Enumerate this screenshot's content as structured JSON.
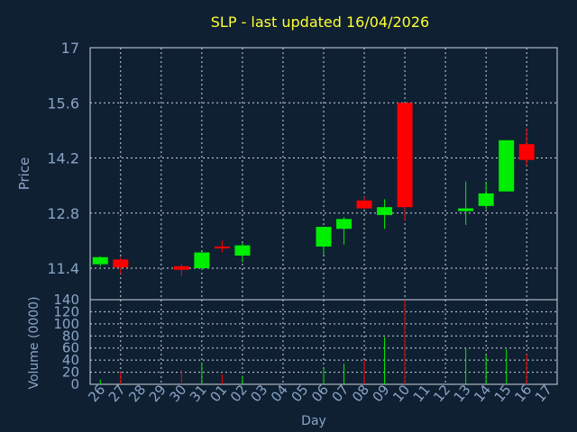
{
  "chart_data": [
    {
      "type": "candlestick",
      "title": "SLP - last updated 16/04/2026",
      "ylabel": "Price",
      "ylim": [
        10.6,
        17
      ],
      "yticks": [
        "17",
        "15.6",
        "14.2",
        "12.8",
        "11.4"
      ],
      "grid": true,
      "up_color": "#00ee00",
      "down_color": "#ff0000",
      "candles": [
        {
          "day": "26",
          "open": 11.5,
          "high": 11.7,
          "low": 11.45,
          "close": 11.68
        },
        {
          "day": "27",
          "open": 11.62,
          "high": 11.68,
          "low": 11.25,
          "close": 11.42
        },
        {
          "day": "30",
          "open": 11.45,
          "high": 11.5,
          "low": 11.2,
          "close": 11.36
        },
        {
          "day": "31",
          "open": 11.4,
          "high": 11.8,
          "low": 11.35,
          "close": 11.8
        },
        {
          "day": "01",
          "open": 11.95,
          "high": 12.1,
          "low": 11.8,
          "close": 11.92
        },
        {
          "day": "02",
          "open": 11.72,
          "high": 12.05,
          "low": 11.55,
          "close": 11.98
        },
        {
          "day": "06",
          "open": 11.95,
          "high": 12.45,
          "low": 11.75,
          "close": 12.45
        },
        {
          "day": "07",
          "open": 12.4,
          "high": 12.7,
          "low": 12.0,
          "close": 12.65
        },
        {
          "day": "08",
          "open": 13.12,
          "high": 13.22,
          "low": 12.9,
          "close": 12.92
        },
        {
          "day": "09",
          "open": 12.75,
          "high": 13.15,
          "low": 12.4,
          "close": 12.95
        },
        {
          "day": "10",
          "open": 15.6,
          "high": 15.6,
          "low": 12.6,
          "close": 12.95
        },
        {
          "day": "13",
          "open": 12.85,
          "high": 13.6,
          "low": 12.5,
          "close": 12.92
        },
        {
          "day": "14",
          "open": 12.98,
          "high": 13.6,
          "low": 12.9,
          "close": 13.3
        },
        {
          "day": "15",
          "open": 13.35,
          "high": 14.65,
          "low": 13.35,
          "close": 14.65
        },
        {
          "day": "16",
          "open": 14.55,
          "high": 14.95,
          "low": 14.0,
          "close": 14.15
        }
      ]
    },
    {
      "type": "bar",
      "ylabel": "Volume (0000)",
      "xlabel": "Day",
      "ylim": [
        0,
        140
      ],
      "yticks": [
        "140",
        "120",
        "100",
        "80",
        "60",
        "40",
        "20",
        "0"
      ],
      "categories": [
        "26",
        "27",
        "28",
        "29",
        "30",
        "31",
        "01",
        "02",
        "03",
        "04",
        "05",
        "06",
        "07",
        "08",
        "09",
        "10",
        "11",
        "12",
        "13",
        "14",
        "15",
        "16",
        "17"
      ],
      "volumes": [
        {
          "day": "26",
          "value": 8,
          "dir": "up"
        },
        {
          "day": "27",
          "value": 20,
          "dir": "down"
        },
        {
          "day": "30",
          "value": 24,
          "dir": "down"
        },
        {
          "day": "31",
          "value": 36,
          "dir": "up"
        },
        {
          "day": "01",
          "value": 16,
          "dir": "down"
        },
        {
          "day": "02",
          "value": 14,
          "dir": "up"
        },
        {
          "day": "06",
          "value": 26,
          "dir": "up"
        },
        {
          "day": "07",
          "value": 34,
          "dir": "up"
        },
        {
          "day": "08",
          "value": 40,
          "dir": "down"
        },
        {
          "day": "09",
          "value": 78,
          "dir": "up"
        },
        {
          "day": "10",
          "value": 140,
          "dir": "down"
        },
        {
          "day": "13",
          "value": 60,
          "dir": "up"
        },
        {
          "day": "14",
          "value": 48,
          "dir": "up"
        },
        {
          "day": "15",
          "value": 58,
          "dir": "up"
        },
        {
          "day": "16",
          "value": 50,
          "dir": "down"
        }
      ]
    }
  ]
}
